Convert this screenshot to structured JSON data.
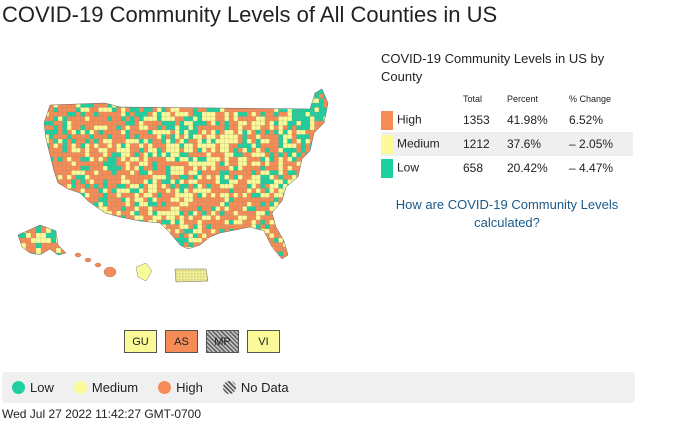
{
  "page": {
    "title": "COVID-19 Community Levels of All Counties in US"
  },
  "colors": {
    "high": "#f58b57",
    "medium": "#fafa99",
    "low": "#1ecf9f",
    "no_data": "#9a9a9a"
  },
  "territories": [
    {
      "code": "GU",
      "level": "medium"
    },
    {
      "code": "AS",
      "level": "high"
    },
    {
      "code": "MP",
      "level": "no_data"
    },
    {
      "code": "VI",
      "level": "medium"
    }
  ],
  "summary": {
    "title": "COVID-19 Community Levels in US by County",
    "columns": {
      "total": "Total",
      "percent": "Percent",
      "change": "% Change"
    },
    "rows": [
      {
        "level": "high",
        "label": "High",
        "total": "1353",
        "percent": "41.98%",
        "change": "6.52%"
      },
      {
        "level": "medium",
        "label": "Medium",
        "total": "1212",
        "percent": "37.6%",
        "change": "– 2.05%"
      },
      {
        "level": "low",
        "label": "Low",
        "total": "658",
        "percent": "20.42%",
        "change": "– 4.47%"
      }
    ]
  },
  "calc_link": "How are COVID-19 Community Levels calculated?",
  "legend": [
    {
      "level": "low",
      "label": "Low"
    },
    {
      "level": "medium",
      "label": "Medium"
    },
    {
      "level": "high",
      "label": "High"
    },
    {
      "level": "no_data",
      "label": "No Data"
    }
  ],
  "timestamp": "Wed Jul 27 2022 11:42:27 GMT-0700"
}
